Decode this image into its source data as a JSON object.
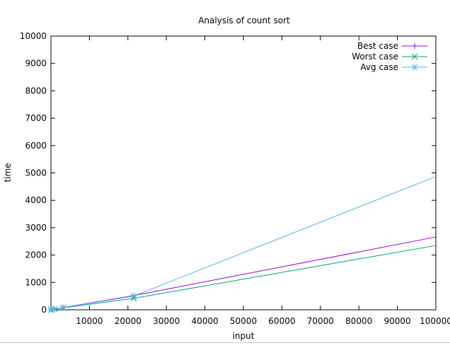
{
  "chart_data": {
    "type": "line",
    "title": "Analysis of count sort",
    "xlabel": "input",
    "ylabel": "time",
    "xlim": [
      0,
      100000
    ],
    "ylim": [
      0,
      10000
    ],
    "xticks": [
      "10000",
      "20000",
      "30000",
      "40000",
      "50000",
      "60000",
      "70000",
      "80000",
      "90000",
      "100000"
    ],
    "yticks": [
      "0",
      "1000",
      "2000",
      "3000",
      "4000",
      "5000",
      "6000",
      "7000",
      "8000",
      "9000",
      "10000"
    ],
    "grid": false,
    "legend_position": "top-right",
    "series": [
      {
        "name": "Best case",
        "color": "#9400d3",
        "marker": "plus",
        "x": [
          10,
          100,
          1000,
          3200,
          21500,
          100000
        ],
        "y": [
          2,
          5,
          28,
          85,
          520,
          2660
        ]
      },
      {
        "name": "Worst case",
        "color": "#009e73",
        "marker": "cross",
        "x": [
          10,
          100,
          1000,
          3200,
          21500,
          100000
        ],
        "y": [
          1,
          4,
          24,
          70,
          420,
          2350
        ]
      },
      {
        "name": "Avg case",
        "color": "#56b4e9",
        "marker": "star",
        "x": [
          10,
          100,
          1000,
          3200,
          21500,
          100000
        ],
        "y": [
          2,
          6,
          30,
          80,
          500,
          4870
        ]
      }
    ]
  }
}
